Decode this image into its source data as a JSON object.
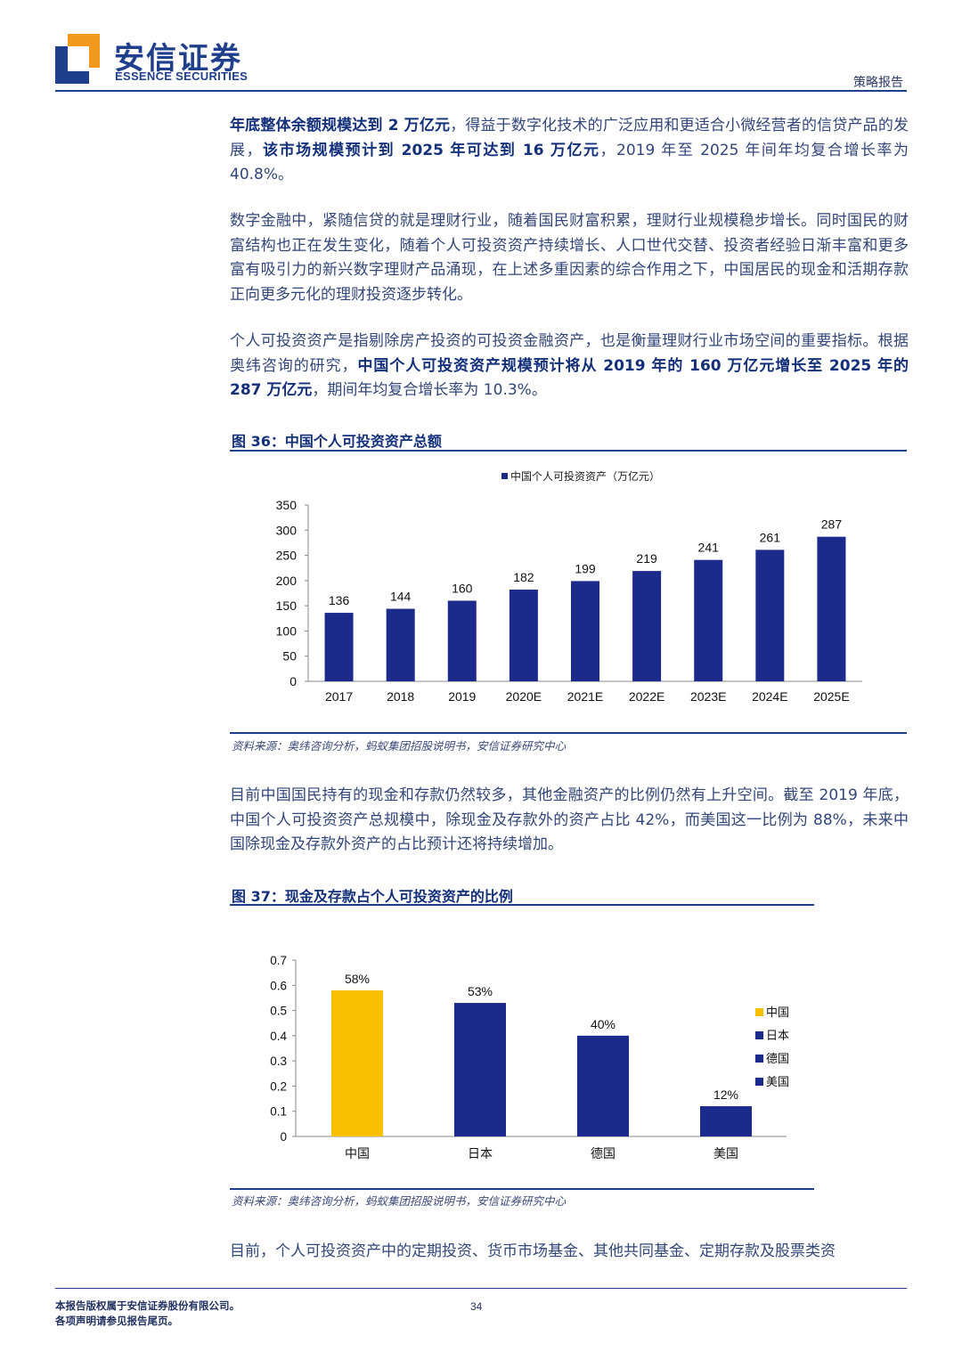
{
  "header": {
    "logo_cn": "安信证券",
    "logo_en": "ESSENCE SECURITIES",
    "report_type": "策略报告"
  },
  "paragraphs": {
    "p1": {
      "b1": "年底整体余额规模达到 2 万亿元",
      "t1": "，得益于数字化技术的广泛应用和更适合小微经营者的信贷产品的发展，",
      "b2": "该市场规模预计到 2025 年可达到 16 万亿元",
      "t2": "，2019 年至 2025 年间年均复合增长率为 40.8%。"
    },
    "p2": "数字金融中，紧随信贷的就是理财行业，随着国民财富积累，理财行业规模稳步增长。同时国民的财富结构也正在发生变化，随着个人可投资资产持续增长、人口世代交替、投资者经验日渐丰富和更多富有吸引力的新兴数字理财产品涌现，在上述多重因素的综合作用之下，中国居民的现金和活期存款正向更多元化的理财投资逐步转化。",
    "p3": {
      "t1": "个人可投资资产是指剔除房产投资的可投资金融资产，也是衡量理财行业市场空间的重要指标。根据奥纬咨询的研究，",
      "b1": "中国个人可投资资产规模预计将从 2019 年的 160 万亿元增长至 2025 年的 287 万亿元",
      "t2": "，期间年均复合增长率为 10.3%。"
    },
    "p4": "目前中国国民持有的现金和存款仍然较多，其他金融资产的比例仍然有上升空间。截至 2019 年底，中国个人可投资资产总规模中，除现金及存款外的资产占比 42%，而美国这一比例为 88%，未来中国除现金及存款外资产的占比预计还将持续增加。",
    "p5": "目前，个人可投资资产中的定期投资、货币市场基金、其他共同基金、定期存款及股票类资"
  },
  "figures": {
    "fig36": {
      "title": "图 36：中国个人可投资资产总额",
      "source": "资料来源：奥纬咨询分析，蚂蚁集团招股说明书，安信证券研究中心"
    },
    "fig37": {
      "title": "图 37：现金及存款占个人可投资资产的比例",
      "source": "资料来源：奥纬咨询分析，蚂蚁集团招股说明书，安信证券研究中心"
    }
  },
  "chart_data": [
    {
      "type": "bar",
      "title": "",
      "legend": [
        "中国个人可投资资产（万亿元）"
      ],
      "legend_position": "top",
      "categories": [
        "2017",
        "2018",
        "2019",
        "2020E",
        "2021E",
        "2022E",
        "2023E",
        "2024E",
        "2025E"
      ],
      "series": [
        {
          "name": "中国个人可投资资产（万亿元）",
          "values": [
            136,
            144,
            160,
            182,
            199,
            219,
            241,
            261,
            287
          ]
        }
      ],
      "data_labels": [
        "136",
        "144",
        "160",
        "182",
        "199",
        "219",
        "241",
        "261",
        "287"
      ],
      "ylim": [
        0,
        350
      ],
      "yticks": [
        "0",
        "50",
        "100",
        "150",
        "200",
        "250",
        "300",
        "350"
      ],
      "color": "#1c2a8c",
      "grid": false
    },
    {
      "type": "bar",
      "title": "",
      "categories": [
        "中国",
        "日本",
        "德国",
        "美国"
      ],
      "values": [
        0.58,
        0.53,
        0.4,
        0.12
      ],
      "data_labels": [
        "58%",
        "53%",
        "40%",
        "12%"
      ],
      "colors": [
        "#f8c000",
        "#1c2a8c",
        "#1c2a8c",
        "#1c2a8c"
      ],
      "legend": [
        "中国",
        "日本",
        "德国",
        "美国"
      ],
      "legend_position": "right",
      "ylim": [
        0,
        0.7
      ],
      "yticks": [
        "0",
        "0.1",
        "0.2",
        "0.3",
        "0.4",
        "0.5",
        "0.6",
        "0.7"
      ],
      "grid": false
    }
  ],
  "footer": {
    "line1": "本报告版权属于安信证券股份有限公司。",
    "line2": "各项声明请参见报告尾页。",
    "page": "34"
  }
}
